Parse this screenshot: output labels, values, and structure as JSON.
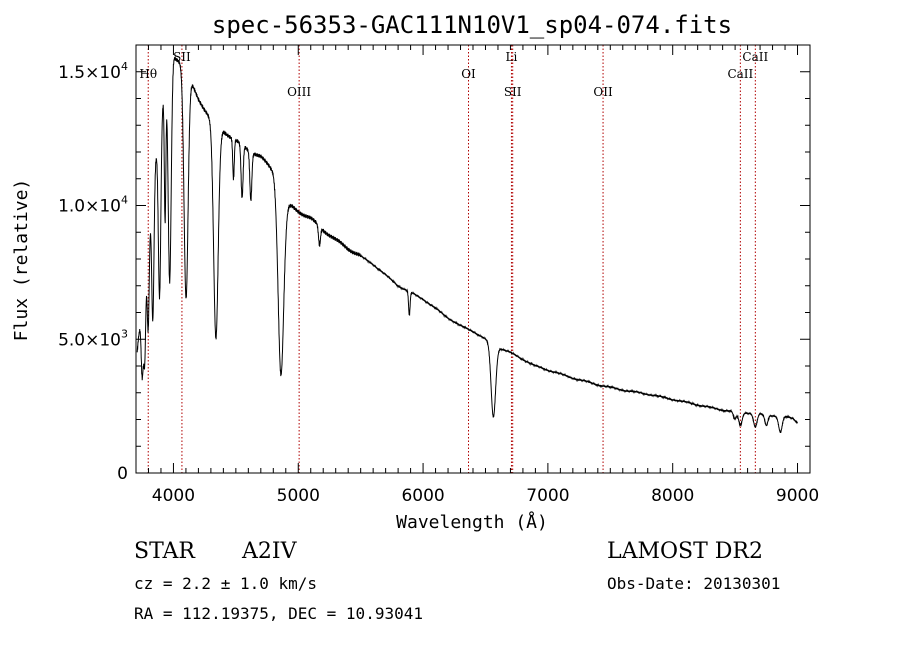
{
  "chart_data": {
    "type": "line",
    "title": "spec-56353-GAC111N10V1_sp04-074.fits",
    "xlabel": "Wavelength (Å)",
    "ylabel": "Flux (relative)",
    "xlim": [
      3700,
      9100
    ],
    "ylim": [
      0,
      16000
    ],
    "xticks": [
      {
        "value": 4000,
        "label": "4000"
      },
      {
        "value": 5000,
        "label": "5000"
      },
      {
        "value": 6000,
        "label": "6000"
      },
      {
        "value": 7000,
        "label": "7000"
      },
      {
        "value": 8000,
        "label": "8000"
      },
      {
        "value": 9000,
        "label": "9000"
      }
    ],
    "yticks": [
      {
        "value": 0,
        "mantissa": "0",
        "exp": ""
      },
      {
        "value": 5000,
        "mantissa": "5.0×10",
        "exp": "3"
      },
      {
        "value": 10000,
        "mantissa": "1.0×10",
        "exp": "4"
      },
      {
        "value": 15000,
        "mantissa": "1.5×10",
        "exp": "4"
      }
    ],
    "continuum": [
      [
        3700,
        4000
      ],
      [
        3720,
        5000
      ],
      [
        3760,
        6500
      ],
      [
        3800,
        9000
      ],
      [
        3850,
        11500
      ],
      [
        3900,
        13500
      ],
      [
        3950,
        14800
      ],
      [
        4000,
        15600
      ],
      [
        4050,
        15400
      ],
      [
        4100,
        15000
      ],
      [
        4150,
        14500
      ],
      [
        4200,
        14000
      ],
      [
        4250,
        13600
      ],
      [
        4300,
        13200
      ],
      [
        4350,
        12700
      ],
      [
        4400,
        12800
      ],
      [
        4450,
        12600
      ],
      [
        4500,
        12400
      ],
      [
        4600,
        12100
      ],
      [
        4700,
        11800
      ],
      [
        4800,
        11300
      ],
      [
        4860,
        10500
      ],
      [
        4900,
        10000
      ],
      [
        4950,
        9950
      ],
      [
        5000,
        9800
      ],
      [
        5100,
        9500
      ],
      [
        5200,
        9100
      ],
      [
        5300,
        8700
      ],
      [
        5400,
        8400
      ],
      [
        5500,
        8100
      ],
      [
        5600,
        7800
      ],
      [
        5700,
        7400
      ],
      [
        5800,
        7000
      ],
      [
        5900,
        6750
      ],
      [
        6000,
        6500
      ],
      [
        6100,
        6150
      ],
      [
        6200,
        5800
      ],
      [
        6300,
        5500
      ],
      [
        6400,
        5300
      ],
      [
        6500,
        5000
      ],
      [
        6560,
        4800
      ],
      [
        6600,
        4700
      ],
      [
        6700,
        4500
      ],
      [
        6800,
        4250
      ],
      [
        6900,
        4000
      ],
      [
        7000,
        3850
      ],
      [
        7200,
        3550
      ],
      [
        7400,
        3300
      ],
      [
        7600,
        3100
      ],
      [
        7800,
        2950
      ],
      [
        8000,
        2750
      ],
      [
        8200,
        2550
      ],
      [
        8400,
        2350
      ],
      [
        8600,
        2250
      ],
      [
        8800,
        2150
      ],
      [
        8900,
        2100
      ],
      [
        8960,
        2050
      ],
      [
        9000,
        1900
      ]
    ],
    "absorption_lines": [
      {
        "x": 3750,
        "depth": 2500,
        "width": 8
      },
      {
        "x": 3770,
        "depth": 3000,
        "width": 8
      },
      {
        "x": 3798,
        "depth": 3500,
        "width": 8
      },
      {
        "x": 3835,
        "depth": 5000,
        "width": 9
      },
      {
        "x": 3889,
        "depth": 6500,
        "width": 10
      },
      {
        "x": 3933,
        "depth": 5000,
        "width": 6
      },
      {
        "x": 3970,
        "depth": 8000,
        "width": 12
      },
      {
        "x": 4101,
        "depth": 8500,
        "width": 16
      },
      {
        "x": 4340,
        "depth": 7800,
        "width": 18
      },
      {
        "x": 4481,
        "depth": 1500,
        "width": 6
      },
      {
        "x": 4550,
        "depth": 2000,
        "width": 8
      },
      {
        "x": 4620,
        "depth": 1800,
        "width": 8
      },
      {
        "x": 4861,
        "depth": 6800,
        "width": 22
      },
      {
        "x": 5170,
        "depth": 700,
        "width": 8
      },
      {
        "x": 5890,
        "depth": 900,
        "width": 6
      },
      {
        "x": 6563,
        "depth": 2700,
        "width": 18
      },
      {
        "x": 8498,
        "depth": 300,
        "width": 12
      },
      {
        "x": 8542,
        "depth": 500,
        "width": 14
      },
      {
        "x": 8662,
        "depth": 500,
        "width": 14
      },
      {
        "x": 8750,
        "depth": 400,
        "width": 12
      },
      {
        "x": 8863,
        "depth": 600,
        "width": 14
      }
    ],
    "reference_lines": [
      {
        "x": 3798,
        "label": "Hθ",
        "row": "upper"
      },
      {
        "x": 4068,
        "label": "SII",
        "row": "top"
      },
      {
        "x": 5007,
        "label": "OIII",
        "row": "lower"
      },
      {
        "x": 6364,
        "label": "OI",
        "row": "upper"
      },
      {
        "x": 6708,
        "label": "Li",
        "row": "top"
      },
      {
        "x": 6718,
        "label": "SII",
        "row": "lower"
      },
      {
        "x": 7442,
        "label": "OII",
        "row": "lower"
      },
      {
        "x": 8542,
        "label": "CaII",
        "row": "upper"
      },
      {
        "x": 8662,
        "label": "CaII",
        "row": "top"
      }
    ],
    "line_color": "#000000",
    "reference_color": "#b00000",
    "grid": false,
    "legend": "none"
  },
  "info": {
    "object_type": "STAR",
    "subclass": "A2IV",
    "cz": "cz = 2.2 ± 1.0 km/s",
    "coords": "RA = 112.19375, DEC =  10.93041",
    "survey": "LAMOST DR2",
    "obs_date": "Obs-Date: 20130301"
  }
}
